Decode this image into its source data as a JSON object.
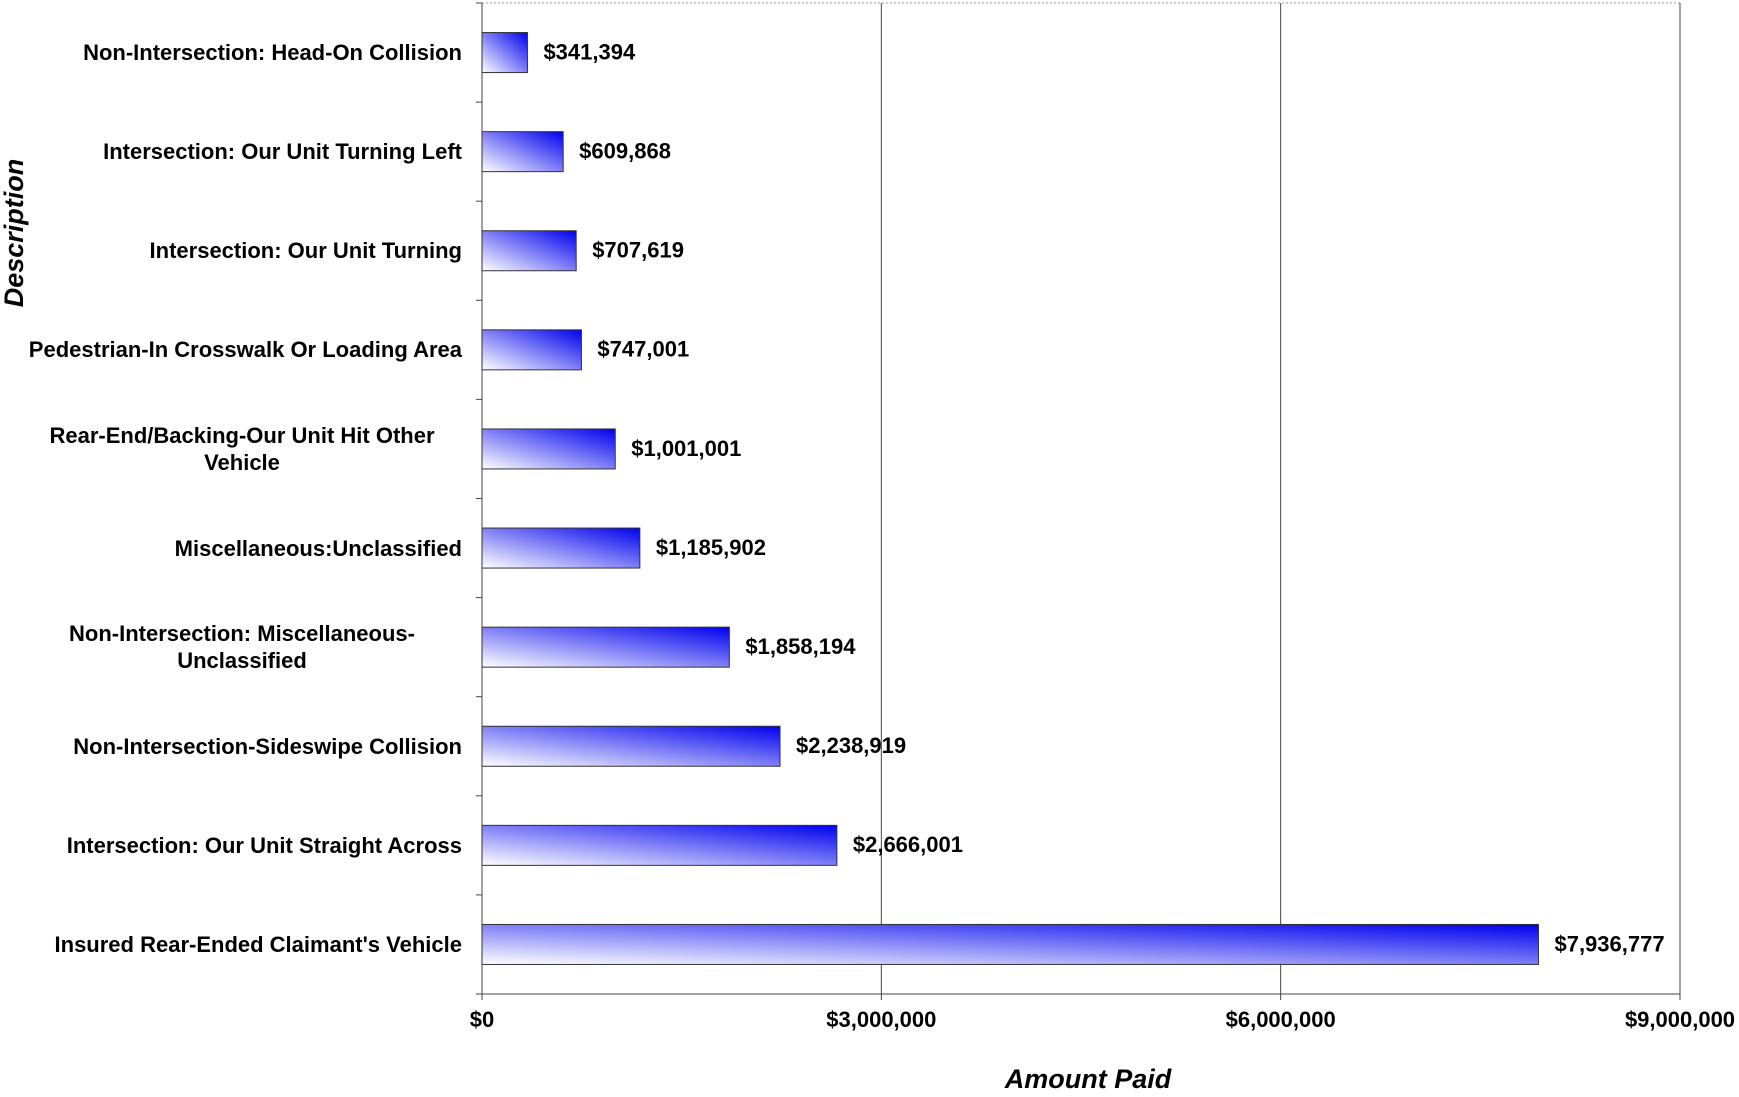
{
  "chart_data": {
    "type": "bar",
    "orientation": "horizontal",
    "x_label": "Amount Paid",
    "y_label": "Description",
    "categories": [
      "Non-Intersection: Head-On Collision",
      "Intersection: Our Unit Turning Left",
      "Intersection: Our Unit Turning",
      "Pedestrian-In Crosswalk Or Loading Area",
      "Rear-End/Backing-Our Unit Hit Other Vehicle",
      "Miscellaneous:Unclassified",
      "Non-Intersection: Miscellaneous-Unclassified",
      "Non-Intersection-Sideswipe Collision",
      "Intersection: Our Unit Straight Across",
      "Insured Rear-Ended Claimant's Vehicle"
    ],
    "values": [
      341394,
      609868,
      707619,
      747001,
      1001001,
      1185902,
      1858194,
      2238919,
      2666001,
      7936777
    ],
    "value_labels": [
      "$341,394",
      "$609,868",
      "$707,619",
      "$747,001",
      "$1,001,001",
      "$1,185,902",
      "$1,858,194",
      "$2,238,919",
      "$2,666,001",
      "$7,936,777"
    ],
    "color": "#0000ee",
    "xlim": [
      0,
      9000000
    ],
    "xticks": [
      {
        "value": 0,
        "label": "$0"
      },
      {
        "value": 3000000,
        "label": "$3,000,000"
      },
      {
        "value": 6000000,
        "label": "$6,000,000"
      },
      {
        "value": 9000000,
        "label": "$9,000,000"
      }
    ],
    "grid": true
  }
}
